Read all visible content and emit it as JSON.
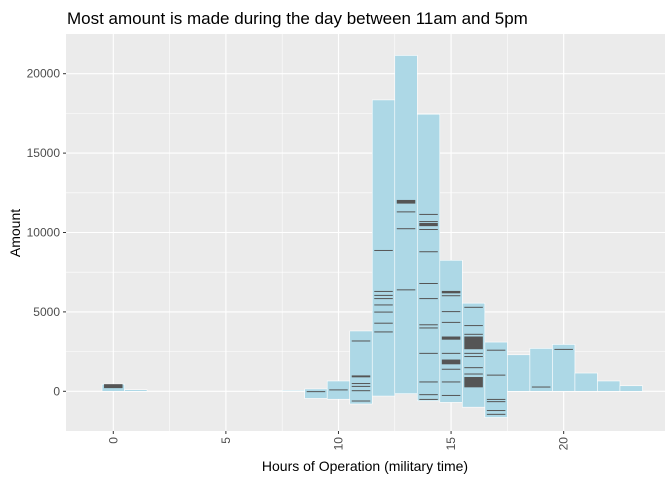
{
  "chart_data": {
    "type": "bar",
    "title": "Most amount is made during the day between 11am and 5pm",
    "xlabel": "Hours of Operation (military time)",
    "ylabel": "Amount",
    "xlim": [
      -2.1,
      24.5
    ],
    "ylim": [
      -2500,
      22500
    ],
    "x_ticks": [
      0,
      5,
      10,
      15,
      20
    ],
    "y_ticks": [
      0,
      5000,
      10000,
      15000,
      20000
    ],
    "grid": true,
    "bar_fill": "#add8e6",
    "segment_color": "#555555",
    "panel_color": "#ebebeb",
    "bars": [
      {
        "hour": 0,
        "value": 450,
        "min": 0,
        "segments": [
          [
            200,
            450
          ]
        ]
      },
      {
        "hour": 1,
        "value": 100,
        "min": 0,
        "segments": []
      },
      {
        "hour": 7,
        "value": 40,
        "min": 0,
        "segments": []
      },
      {
        "hour": 8,
        "value": 60,
        "min": 0,
        "segments": []
      },
      {
        "hour": 9,
        "value": 150,
        "min": -450,
        "segments": [
          [
            0,
            10
          ]
        ]
      },
      {
        "hour": 10,
        "value": 650,
        "min": -500,
        "segments": [
          [
            80,
            120
          ]
        ]
      },
      {
        "hour": 11,
        "value": 3800,
        "min": -800,
        "segments": [
          [
            3150,
            3200
          ],
          [
            880,
            1000
          ],
          [
            480,
            520
          ],
          [
            300,
            340
          ],
          [
            30,
            70
          ],
          [
            -620,
            -580
          ]
        ]
      },
      {
        "hour": 12,
        "value": 18350,
        "min": -300,
        "segments": [
          [
            8850,
            8900
          ],
          [
            6270,
            6320
          ],
          [
            6020,
            6070
          ],
          [
            5820,
            5870
          ],
          [
            5420,
            5470
          ],
          [
            4970,
            5020
          ],
          [
            4270,
            4320
          ],
          [
            3720,
            3770
          ]
        ]
      },
      {
        "hour": 13,
        "value": 21150,
        "min": -150,
        "segments": [
          [
            11820,
            12050
          ],
          [
            11280,
            11330
          ],
          [
            10220,
            10270
          ],
          [
            6370,
            6420
          ]
        ]
      },
      {
        "hour": 14,
        "value": 17450,
        "min": -600,
        "segments": [
          [
            11120,
            11170
          ],
          [
            10670,
            10720
          ],
          [
            10400,
            10600
          ],
          [
            10170,
            10220
          ],
          [
            8770,
            8820
          ],
          [
            6770,
            6820
          ],
          [
            5820,
            5870
          ],
          [
            4170,
            4220
          ],
          [
            3970,
            4020
          ],
          [
            2370,
            2420
          ],
          [
            570,
            620
          ],
          [
            -230,
            -180
          ],
          [
            -530,
            -480
          ]
        ]
      },
      {
        "hour": 15,
        "value": 8250,
        "min": -700,
        "segments": [
          [
            6170,
            6320
          ],
          [
            6000,
            6050
          ],
          [
            5000,
            5050
          ],
          [
            4320,
            4370
          ],
          [
            3250,
            3450
          ],
          [
            2370,
            2420
          ],
          [
            1700,
            2000
          ],
          [
            1370,
            1420
          ],
          [
            570,
            620
          ],
          [
            -280,
            -230
          ]
        ]
      },
      {
        "hour": 16,
        "value": 5550,
        "min": -1000,
        "segments": [
          [
            5270,
            5320
          ],
          [
            4120,
            4170
          ],
          [
            3570,
            3620
          ],
          [
            2650,
            3450
          ],
          [
            2370,
            2420
          ],
          [
            2170,
            2220
          ],
          [
            1470,
            1520
          ],
          [
            1070,
            1120
          ],
          [
            250,
            900
          ]
        ]
      },
      {
        "hour": 17,
        "value": 3100,
        "min": -1650,
        "segments": [
          [
            2570,
            2620
          ],
          [
            1000,
            1050
          ],
          [
            -530,
            -480
          ],
          [
            -670,
            -620
          ],
          [
            -1230,
            -1180
          ],
          [
            -1470,
            -1420
          ]
        ]
      },
      {
        "hour": 18,
        "value": 2300,
        "min": 0,
        "segments": []
      },
      {
        "hour": 19,
        "value": 2700,
        "min": 0,
        "segments": [
          [
            250,
            300
          ]
        ]
      },
      {
        "hour": 20,
        "value": 2950,
        "min": 0,
        "segments": [
          [
            2620,
            2670
          ]
        ]
      },
      {
        "hour": 21,
        "value": 1150,
        "min": 0,
        "segments": []
      },
      {
        "hour": 22,
        "value": 650,
        "min": 0,
        "segments": []
      },
      {
        "hour": 23,
        "value": 350,
        "min": 0,
        "segments": []
      }
    ]
  }
}
